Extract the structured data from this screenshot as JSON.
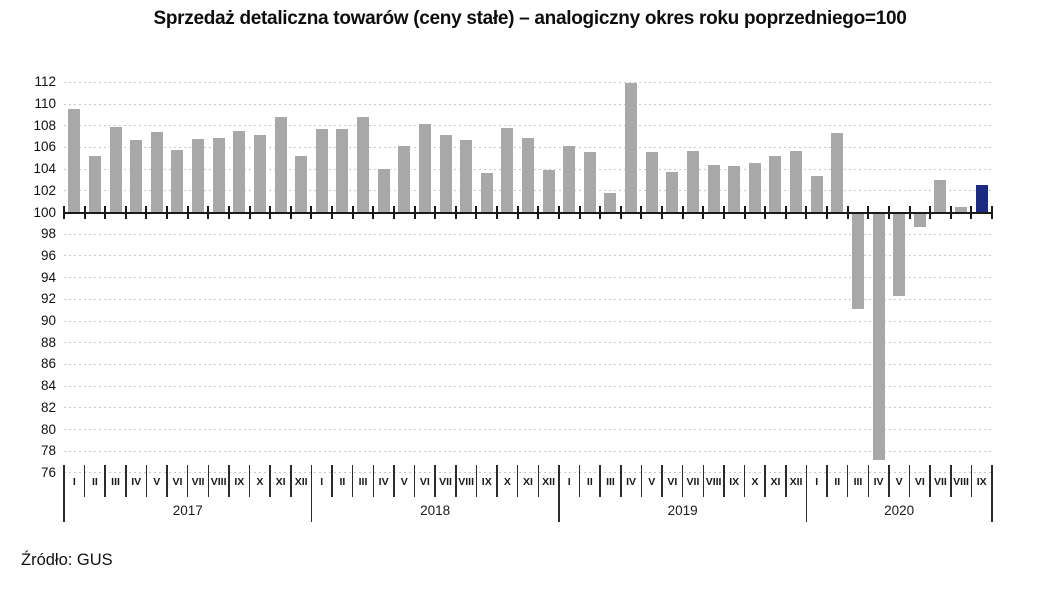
{
  "header": {
    "title": "Sprzedaż detaliczna towarów (ceny stałe) – analogiczny okres roku poprzedniego=100"
  },
  "source_note": "Źródło: GUS",
  "colors": {
    "bar": "#a8a8a8",
    "highlight_bar": "#1c2b80",
    "baseline": "#1a1a1a",
    "gridline": "#c9c9c9",
    "text": "#1a1a1a",
    "background": "#ffffff"
  },
  "chart_data": {
    "type": "bar",
    "title": "Sprzedaż detaliczna towarów (ceny stałe) – analogiczny okres roku poprzedniego=100",
    "xlabel": "",
    "ylabel": "",
    "ylim": [
      76,
      112
    ],
    "yticks": [
      112,
      110,
      108,
      106,
      104,
      102,
      100,
      98,
      96,
      94,
      92,
      90,
      88,
      86,
      84,
      82,
      80,
      78,
      76
    ],
    "baseline": 100,
    "grid": "horizontal-dashed",
    "legend": "none",
    "month_labels": [
      "I",
      "II",
      "III",
      "IV",
      "V",
      "VI",
      "VII",
      "VIII",
      "IX",
      "X",
      "XI",
      "XII"
    ],
    "series": [
      {
        "year": "2017",
        "values": [
          109.5,
          105.2,
          107.9,
          106.7,
          107.4,
          105.8,
          106.8,
          106.9,
          107.5,
          107.1,
          108.8,
          105.2
        ]
      },
      {
        "year": "2018",
        "values": [
          107.7,
          107.7,
          108.8,
          104.0,
          106.1,
          108.2,
          107.1,
          106.7,
          103.6,
          107.8,
          106.9,
          103.9
        ]
      },
      {
        "year": "2019",
        "values": [
          106.1,
          105.6,
          101.8,
          111.9,
          105.6,
          103.7,
          105.7,
          104.4,
          104.3,
          104.6,
          105.2,
          105.7
        ]
      },
      {
        "year": "2020",
        "values": [
          103.4,
          107.3,
          91.1,
          77.2,
          92.3,
          98.7,
          103.0,
          100.5,
          102.5
        ]
      }
    ],
    "highlight": {
      "year": "2020",
      "month": "IX"
    }
  }
}
